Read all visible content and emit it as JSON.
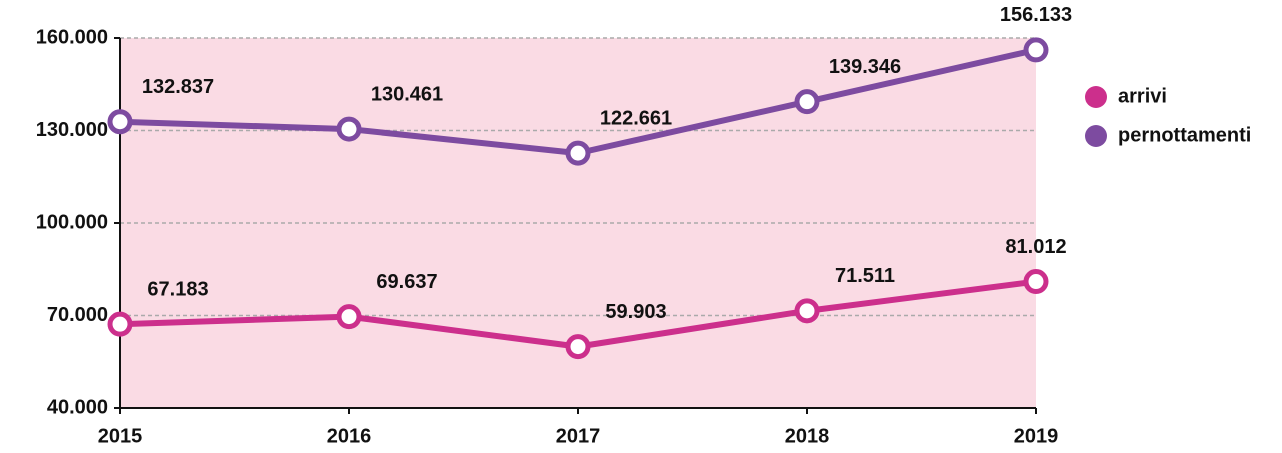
{
  "chart_data": {
    "type": "line",
    "categories": [
      "2015",
      "2016",
      "2017",
      "2018",
      "2019"
    ],
    "series": [
      {
        "name": "arrivi",
        "color": "#cc2f8c",
        "values": [
          67183,
          69637,
          59903,
          71511,
          81012
        ],
        "value_labels": [
          "67.183",
          "69.637",
          "59.903",
          "71.511",
          "81.012"
        ]
      },
      {
        "name": "pernottamenti",
        "color": "#7d4ba0",
        "values": [
          132837,
          130461,
          122661,
          139346,
          156133
        ],
        "value_labels": [
          "132.837",
          "130.461",
          "122.661",
          "139.346",
          "156.133"
        ]
      }
    ],
    "ylim": [
      40000,
      160000
    ],
    "yticks": [
      {
        "value": 40000,
        "label": "40.000"
      },
      {
        "value": 70000,
        "label": "70.000"
      },
      {
        "value": 100000,
        "label": "100.000"
      },
      {
        "value": 130000,
        "label": "130.000"
      },
      {
        "value": 160000,
        "label": "160.000"
      }
    ],
    "grid": true,
    "legend": "right",
    "background": "#fadbe4"
  }
}
